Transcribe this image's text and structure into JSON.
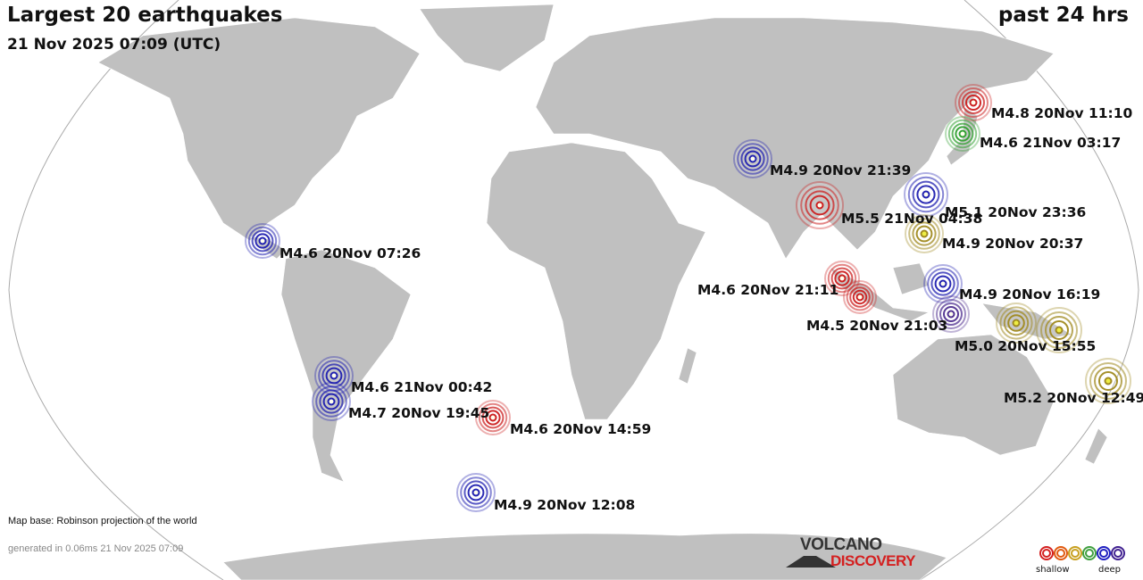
{
  "title": "Largest 20 earthquakes",
  "subtitle": "21 Nov 2025 07:09 (UTC)",
  "period": "past 24 hrs",
  "map_base": "Map base: Robinson projection of the world",
  "generated": "generated in 0.06ms 21 Nov 2025 07:09",
  "logo": {
    "line1": "VOLCANO",
    "line2": "DISCOVERY"
  },
  "legend": {
    "shallow": "shallow",
    "deep": "deep",
    "colors": [
      "#d42020",
      "#e05a10",
      "#c8a020",
      "#40a040",
      "#2020c0",
      "#402090"
    ]
  },
  "colors": {
    "land": "#c0c0c0",
    "red": "#cc2020",
    "green": "#30a030",
    "blue": "#2020b0",
    "olive": "#a08a20",
    "purple": "#503090"
  },
  "quakes": [
    {
      "label": "M4.8 20Nov 11:10",
      "color": "red",
      "size": 1.0
    },
    {
      "label": "M4.6 21Nov 03:17",
      "color": "green",
      "size": 0.95
    },
    {
      "label": "M4.9 20Nov 21:39",
      "color": "blue",
      "size": 1.05
    },
    {
      "label": "M5.5 21Nov 04:38",
      "color": "red",
      "size": 1.3
    },
    {
      "label": "M5.1 20Nov 23:36",
      "color": "blue",
      "size": 1.2
    },
    {
      "label": "M4.9 20Nov 20:37",
      "color": "olive",
      "size": 1.05
    },
    {
      "label": "M4.6 20Nov 07:26",
      "color": "blue",
      "size": 0.95
    },
    {
      "label": "M4.6 20Nov 21:11",
      "color": "red",
      "size": 0.95
    },
    {
      "label": "M4.5 20Nov 21:03",
      "color": "red",
      "size": 0.9
    },
    {
      "label": "M4.9 20Nov 16:19",
      "color": "blue",
      "size": 1.05
    },
    {
      "label": "",
      "color": "purple",
      "size": 1.0
    },
    {
      "label": "M5.0 20Nov 15:55",
      "color": "olive",
      "size": 1.1
    },
    {
      "label": "",
      "color": "olive",
      "size": 1.25
    },
    {
      "label": "M5.2 20Nov 12:49",
      "color": "olive",
      "size": 1.25
    },
    {
      "label": "M4.6 21Nov 00:42",
      "color": "blue",
      "size": 1.05
    },
    {
      "label": "M4.7 20Nov 19:45",
      "color": "blue",
      "size": 1.05
    },
    {
      "label": "M4.6 20Nov 14:59",
      "color": "red",
      "size": 0.95
    },
    {
      "label": "M4.9 20Nov 12:08",
      "color": "blue",
      "size": 1.05
    }
  ]
}
